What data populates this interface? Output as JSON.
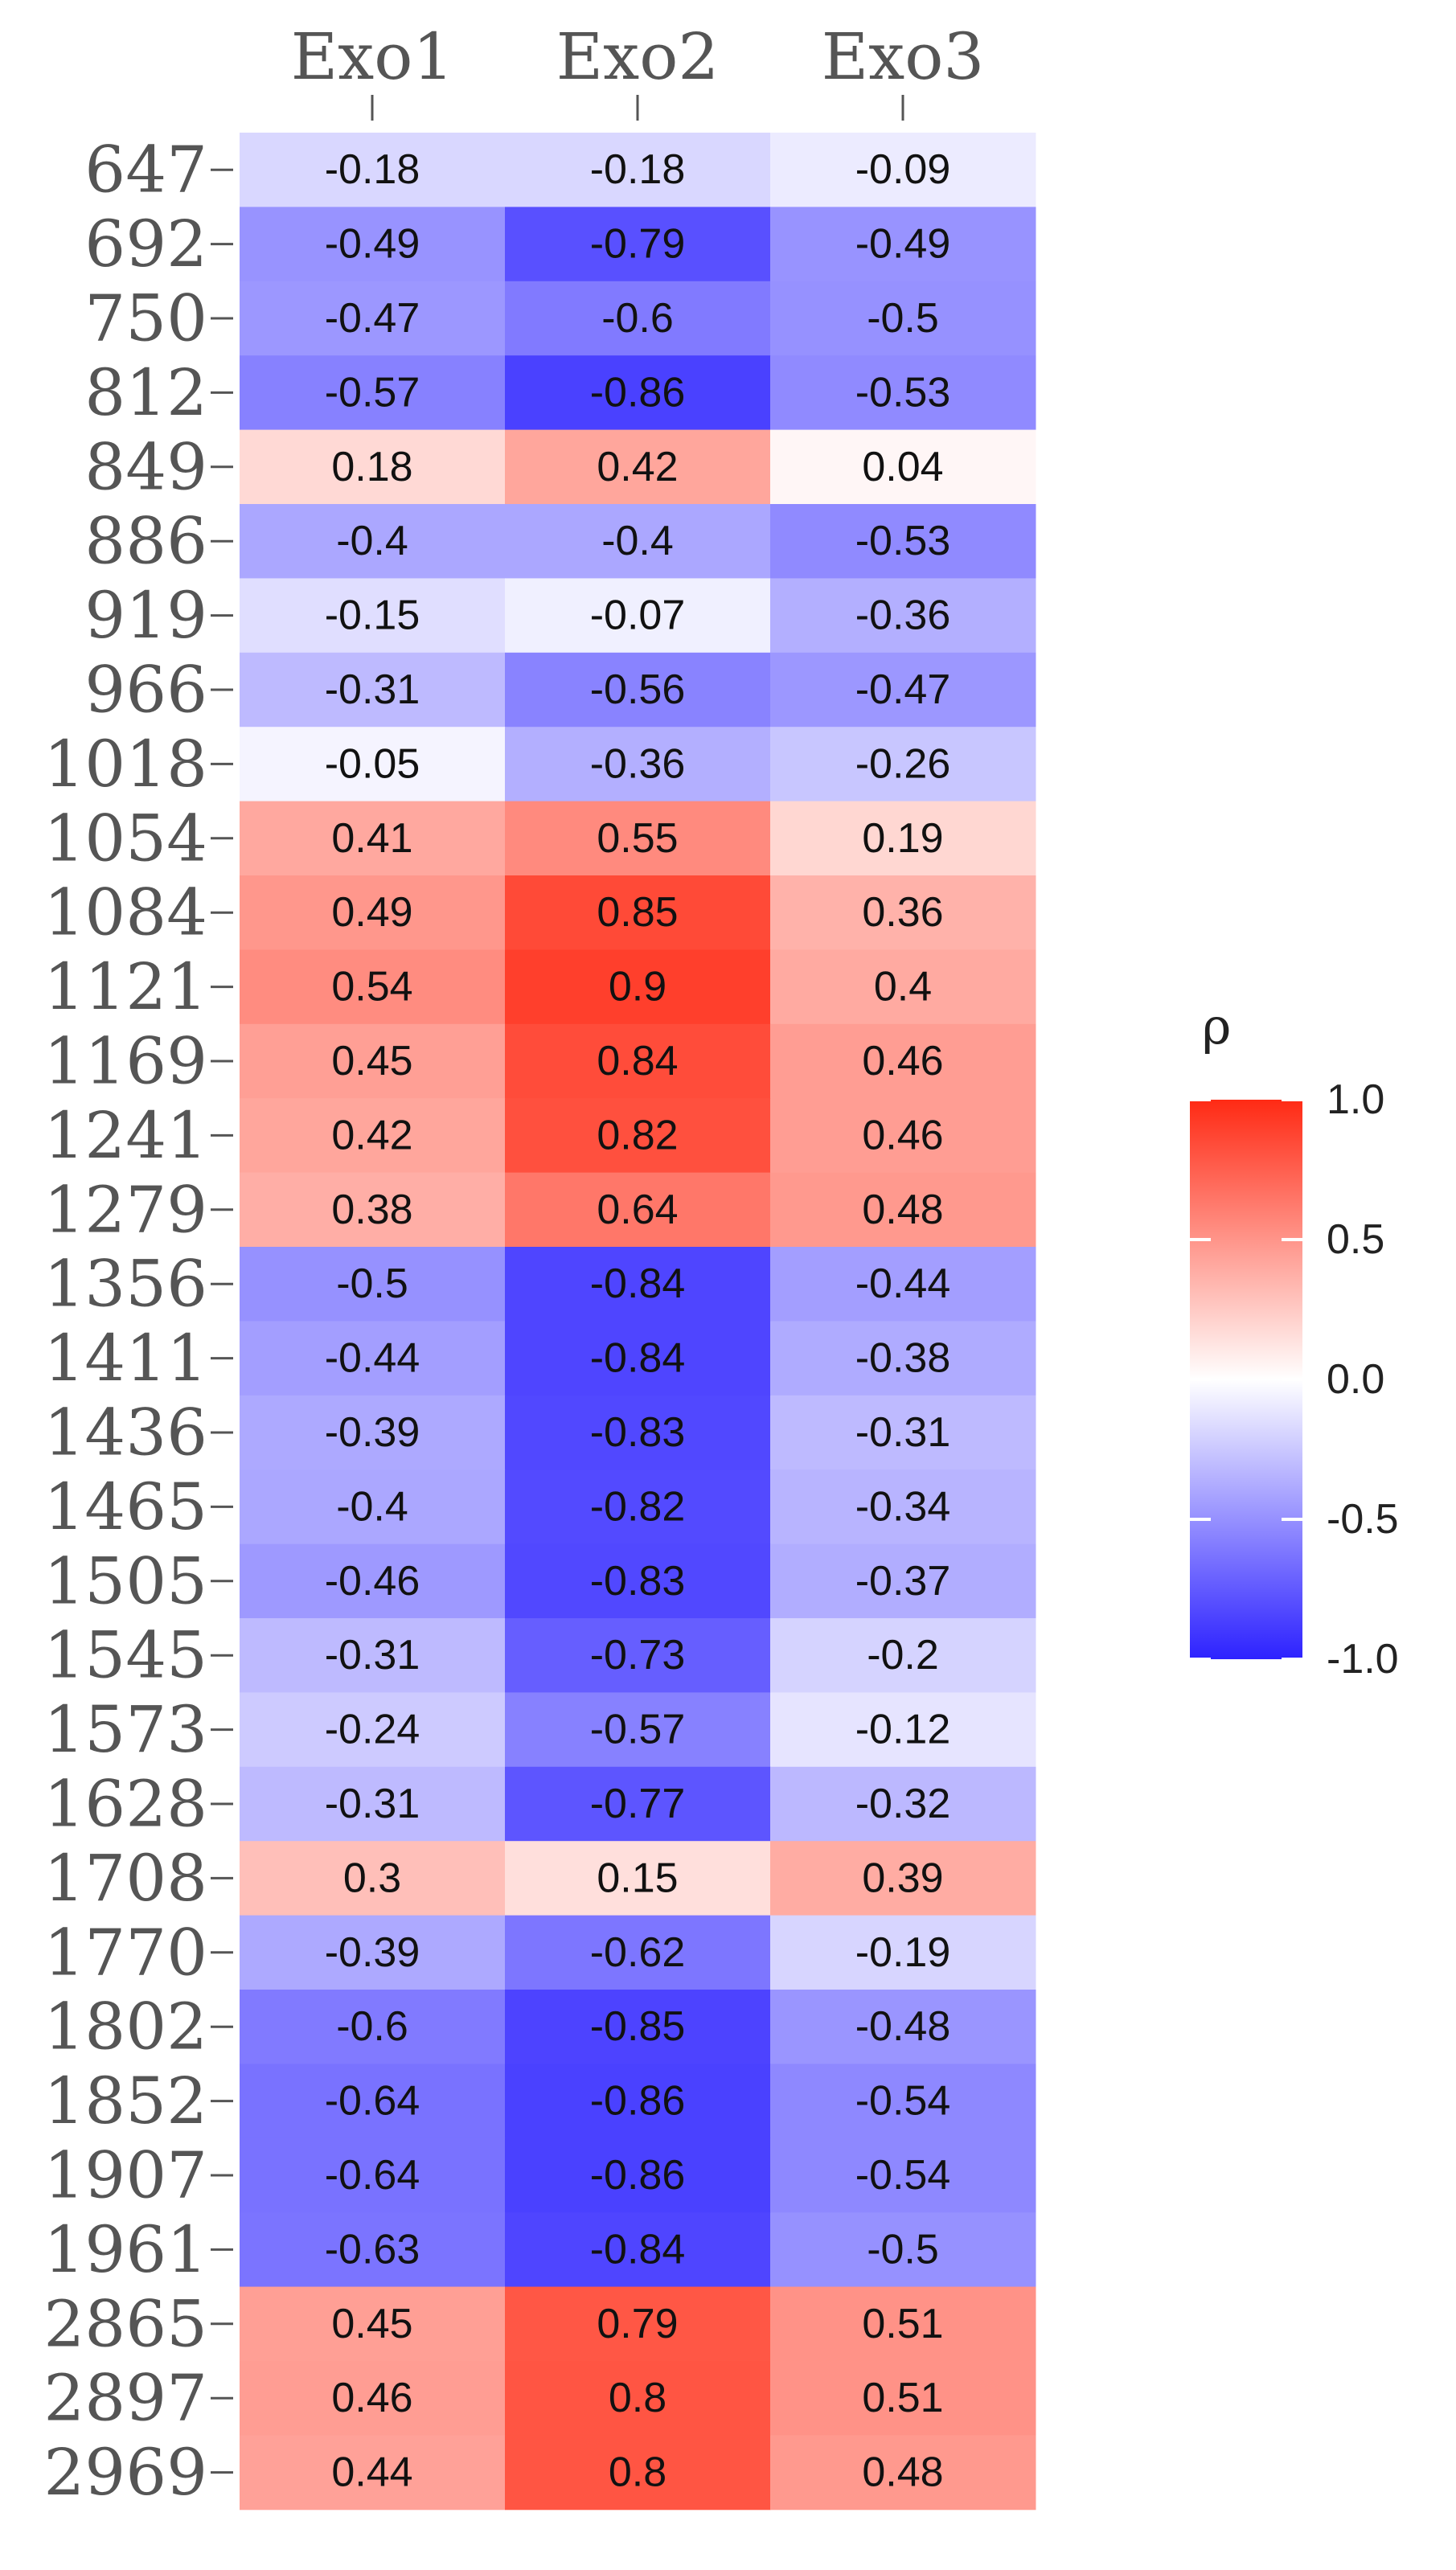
{
  "chart_data": {
    "type": "heatmap",
    "columns": [
      "Exo1",
      "Exo2",
      "Exo3"
    ],
    "rows": [
      "647",
      "692",
      "750",
      "812",
      "849",
      "886",
      "919",
      "966",
      "1018",
      "1054",
      "1084",
      "1121",
      "1169",
      "1241",
      "1279",
      "1356",
      "1411",
      "1436",
      "1465",
      "1505",
      "1545",
      "1573",
      "1628",
      "1708",
      "1770",
      "1802",
      "1852",
      "1907",
      "1961",
      "2865",
      "2897",
      "2969"
    ],
    "values": [
      [
        "-0.18",
        "-0.18",
        "-0.09"
      ],
      [
        "-0.49",
        "-0.79",
        "-0.49"
      ],
      [
        "-0.47",
        "-0.6",
        "-0.5"
      ],
      [
        "-0.57",
        "-0.86",
        "-0.53"
      ],
      [
        "0.18",
        "0.42",
        "0.04"
      ],
      [
        "-0.4",
        "-0.4",
        "-0.53"
      ],
      [
        "-0.15",
        "-0.07",
        "-0.36"
      ],
      [
        "-0.31",
        "-0.56",
        "-0.47"
      ],
      [
        "-0.05",
        "-0.36",
        "-0.26"
      ],
      [
        "0.41",
        "0.55",
        "0.19"
      ],
      [
        "0.49",
        "0.85",
        "0.36"
      ],
      [
        "0.54",
        "0.9",
        "0.4"
      ],
      [
        "0.45",
        "0.84",
        "0.46"
      ],
      [
        "0.42",
        "0.82",
        "0.46"
      ],
      [
        "0.38",
        "0.64",
        "0.48"
      ],
      [
        "-0.5",
        "-0.84",
        "-0.44"
      ],
      [
        "-0.44",
        "-0.84",
        "-0.38"
      ],
      [
        "-0.39",
        "-0.83",
        "-0.31"
      ],
      [
        "-0.4",
        "-0.82",
        "-0.34"
      ],
      [
        "-0.46",
        "-0.83",
        "-0.37"
      ],
      [
        "-0.31",
        "-0.73",
        "-0.2"
      ],
      [
        "-0.24",
        "-0.57",
        "-0.12"
      ],
      [
        "-0.31",
        "-0.77",
        "-0.32"
      ],
      [
        "0.3",
        "0.15",
        "0.39"
      ],
      [
        "-0.39",
        "-0.62",
        "-0.19"
      ],
      [
        "-0.6",
        "-0.85",
        "-0.48"
      ],
      [
        "-0.64",
        "-0.86",
        "-0.54"
      ],
      [
        "-0.64",
        "-0.86",
        "-0.54"
      ],
      [
        "-0.63",
        "-0.84",
        "-0.5"
      ],
      [
        "0.45",
        "0.79",
        "0.51"
      ],
      [
        "0.46",
        "0.8",
        "0.51"
      ],
      [
        "0.44",
        "0.8",
        "0.48"
      ]
    ],
    "legend": {
      "title": "ρ",
      "placement": "right",
      "range": [
        -1.0,
        1.0
      ],
      "ticks": [
        "1.0",
        "0.5",
        "0.0",
        "-0.5",
        "-1.0"
      ],
      "colors": {
        "low": "#2d22ff",
        "mid": "#ffffff",
        "high": "#ff2a14"
      }
    },
    "grid": false
  }
}
